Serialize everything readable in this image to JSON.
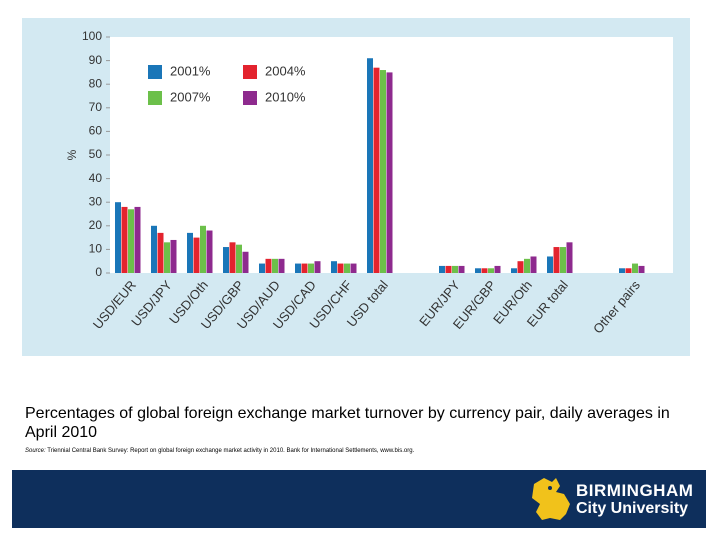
{
  "chart_data": {
    "type": "bar",
    "y_label": "%",
    "categories": [
      "USD/EUR",
      "USD/JPY",
      "USD/Oth",
      "USD/GBP",
      "USD/AUD",
      "USD/CAD",
      "USD/CHF",
      "USD total",
      null,
      "EUR/JPY",
      "EUR/GBP",
      "EUR/Oth",
      "EUR total",
      null,
      "Other pairs"
    ],
    "series": [
      {
        "name": "2001%",
        "color": "#1a76b8",
        "values": [
          30,
          20,
          17,
          11,
          4,
          4,
          5,
          91,
          null,
          3,
          2,
          2,
          7,
          null,
          2
        ]
      },
      {
        "name": "2004%",
        "color": "#e3232e",
        "values": [
          28,
          17,
          15,
          13,
          6,
          4,
          4,
          87,
          null,
          3,
          2,
          5,
          11,
          null,
          2
        ]
      },
      {
        "name": "2007%",
        "color": "#6cc04a",
        "values": [
          27,
          13,
          20,
          12,
          6,
          4,
          4,
          86,
          null,
          3,
          2,
          6,
          11,
          null,
          4
        ]
      },
      {
        "name": "2010%",
        "color": "#8e2a8e",
        "values": [
          28,
          14,
          18,
          9,
          6,
          5,
          4,
          85,
          null,
          3,
          3,
          7,
          13,
          null,
          3
        ]
      }
    ],
    "ylim": [
      0,
      100
    ],
    "yticks": [
      0,
      10,
      20,
      30,
      40,
      50,
      60,
      70,
      80,
      90,
      100
    ],
    "grid": false,
    "legend_position": "upper-left"
  },
  "caption": "Percentages of global foreign exchange market turnover by currency pair, daily averages in April 2010",
  "source_label": "Source:",
  "source_text": "Triennial Central Bank Survey: Report on global foreign exchange market activity in 2010. Bank for International Settlements, www.bis.org.",
  "logo": {
    "line1": "BIRMINGHAM",
    "line2": "City University"
  }
}
